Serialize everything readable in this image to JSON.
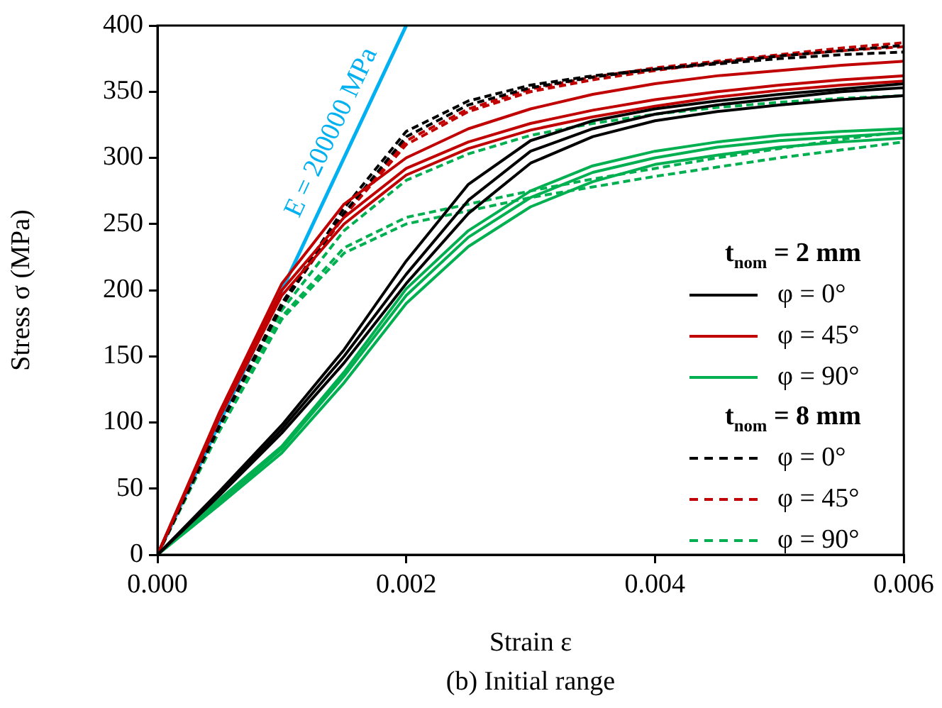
{
  "chart_data": {
    "type": "line",
    "xlabel": "Strain ε",
    "ylabel": "Stress σ (MPa)",
    "legend_title": "t$_{nom}$ = 2 mm",
    "annotations": [
      "t$_{nom}$ = 8 mm",
      "(b) Initial range"
    ],
    "x": [
      0,
      0.0005,
      0.001,
      0.0015,
      0.002,
      0.0025,
      0.003,
      0.0035,
      0.004,
      0.0045,
      0.005,
      0.0055,
      0.006
    ],
    "xlim": [
      0,
      0.006
    ],
    "xticks": [
      {
        "value": 0,
        "label": "0.000"
      },
      {
        "value": 0.002,
        "label": "0.002"
      },
      {
        "value": 0.004,
        "label": "0.004"
      },
      {
        "value": 0.006,
        "label": "0.006"
      }
    ],
    "ylim": [
      0,
      400
    ],
    "yticks": [
      0,
      50,
      100,
      150,
      200,
      250,
      300,
      350,
      400
    ],
    "grid": false,
    "legend": "right",
    "marker": "none",
    "series": [
      {
        "name": "φ = 0°",
        "color": "#000000",
        "line_style": "solid",
        "values": [
          0,
          48,
          98,
          155,
          222,
          280,
          313,
          328,
          337,
          343,
          348,
          352,
          356
        ]
      },
      {
        "color": "#000000",
        "line_style": "solid",
        "values": [
          0,
          46,
          95,
          150,
          212,
          268,
          305,
          322,
          333,
          340,
          345,
          350,
          353
        ]
      },
      {
        "color": "#000000",
        "line_style": "solid",
        "values": [
          0,
          45,
          92,
          145,
          205,
          258,
          296,
          316,
          328,
          335,
          340,
          344,
          347
        ]
      },
      {
        "name": "φ = 45°",
        "color": "#c00000",
        "line_style": "solid",
        "values": [
          0,
          108,
          205,
          265,
          300,
          322,
          337,
          348,
          356,
          362,
          366,
          370,
          373
        ]
      },
      {
        "color": "#c00000",
        "line_style": "solid",
        "values": [
          0,
          106,
          200,
          255,
          292,
          312,
          326,
          336,
          344,
          350,
          355,
          359,
          362
        ]
      },
      {
        "color": "#c00000",
        "line_style": "solid",
        "values": [
          0,
          104,
          196,
          250,
          287,
          307,
          321,
          331,
          339,
          346,
          351,
          355,
          358
        ]
      },
      {
        "name": "φ = 90°",
        "color": "#00b050",
        "line_style": "solid",
        "values": [
          0,
          42,
          82,
          138,
          201,
          245,
          275,
          294,
          305,
          312,
          317,
          320,
          322
        ]
      },
      {
        "color": "#00b050",
        "line_style": "solid",
        "values": [
          0,
          40,
          80,
          135,
          196,
          240,
          270,
          289,
          300,
          308,
          313,
          316,
          319
        ]
      },
      {
        "color": "#00b050",
        "line_style": "solid",
        "values": [
          0,
          38,
          77,
          130,
          190,
          233,
          263,
          282,
          295,
          302,
          308,
          312,
          315
        ]
      },
      {
        "name": "φ = 0°",
        "color": "#000000",
        "line_style": "dashed",
        "values": [
          0,
          98,
          190,
          262,
          320,
          343,
          355,
          362,
          367,
          371,
          375,
          378,
          380
        ]
      },
      {
        "color": "#000000",
        "line_style": "dashed",
        "values": [
          0,
          97,
          188,
          258,
          316,
          340,
          353,
          361,
          367,
          372,
          377,
          381,
          385
        ]
      },
      {
        "name": "φ = 45°",
        "color": "#c00000",
        "line_style": "dashed",
        "values": [
          0,
          98,
          190,
          258,
          313,
          337,
          352,
          361,
          368,
          373,
          378,
          383,
          387
        ]
      },
      {
        "color": "#c00000",
        "line_style": "dashed",
        "values": [
          0,
          98,
          189,
          256,
          310,
          335,
          350,
          359,
          366,
          372,
          377,
          381,
          384
        ]
      },
      {
        "name": "φ = 90°",
        "color": "#00b050",
        "line_style": "dashed",
        "values": [
          0,
          95,
          185,
          245,
          283,
          303,
          317,
          326,
          333,
          338,
          342,
          345,
          347
        ]
      },
      {
        "color": "#00b050",
        "line_style": "dashed",
        "values": [
          0,
          94,
          180,
          232,
          255,
          265,
          275,
          284,
          292,
          300,
          307,
          314,
          320
        ]
      },
      {
        "color": "#00b050",
        "line_style": "dashed",
        "values": [
          0,
          94,
          178,
          228,
          250,
          260,
          270,
          278,
          286,
          293,
          300,
          306,
          312
        ]
      },
      {
        "name": "E = 200000 MPa",
        "type": "line",
        "color": "#00b0f0",
        "line_style": "solid",
        "x": [
          0,
          0.002
        ],
        "values": [
          0,
          400
        ]
      }
    ]
  }
}
